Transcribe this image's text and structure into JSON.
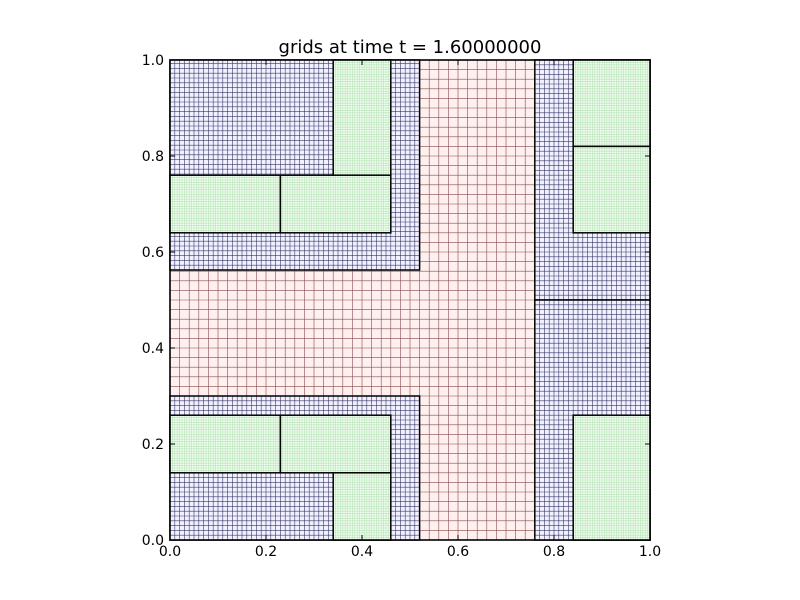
{
  "chart_data": {
    "type": "amr-grid",
    "title": "grids at time t =      1.60000000",
    "xlim": [
      0,
      1
    ],
    "ylim": [
      0,
      1
    ],
    "xticks": [
      {
        "value": 0,
        "label": "0.0"
      },
      {
        "value": 0.2,
        "label": "0.2"
      },
      {
        "value": 0.4,
        "label": "0.4"
      },
      {
        "value": 0.6,
        "label": "0.6"
      },
      {
        "value": 0.8,
        "label": "0.8"
      },
      {
        "value": 1,
        "label": "1.0"
      }
    ],
    "yticks": [
      {
        "value": 0,
        "label": "0.0"
      },
      {
        "value": 0.2,
        "label": "0.2"
      },
      {
        "value": 0.4,
        "label": "0.4"
      },
      {
        "value": 0.6,
        "label": "0.6"
      },
      {
        "value": 0.8,
        "label": "0.8"
      },
      {
        "value": 1,
        "label": "1.0"
      }
    ],
    "series": [
      {
        "color": "#fff0f0",
        "line_color": "#8a4a4a",
        "cell": 0.02,
        "rects": [
          [
            0,
            1,
            0,
            1
          ]
        ]
      },
      {
        "color": "#f0f0ff",
        "line_color": "#3a3a6a",
        "cell": 0.01,
        "rects": [
          [
            0,
            0.52,
            0.5625,
            1
          ],
          [
            0,
            0.52,
            0,
            0.3
          ],
          [
            0.76,
            1,
            0.5,
            1
          ],
          [
            0.76,
            1,
            0,
            0.5
          ]
        ]
      },
      {
        "color": "#f0fff0",
        "line_color": "#b8e0b8",
        "cell": 0.005,
        "rects": [
          [
            0.34,
            0.46,
            0.76,
            1
          ],
          [
            0,
            0.23,
            0.64,
            0.76
          ],
          [
            0.23,
            0.46,
            0.64,
            0.76
          ],
          [
            0,
            0.23,
            0.14,
            0.26
          ],
          [
            0.23,
            0.46,
            0.14,
            0.26
          ],
          [
            0.34,
            0.46,
            0,
            0.14
          ],
          [
            0.84,
            1,
            0.82,
            1
          ],
          [
            0.84,
            1,
            0.64,
            0.82
          ],
          [
            0.84,
            1,
            0,
            0.26
          ]
        ]
      }
    ]
  }
}
